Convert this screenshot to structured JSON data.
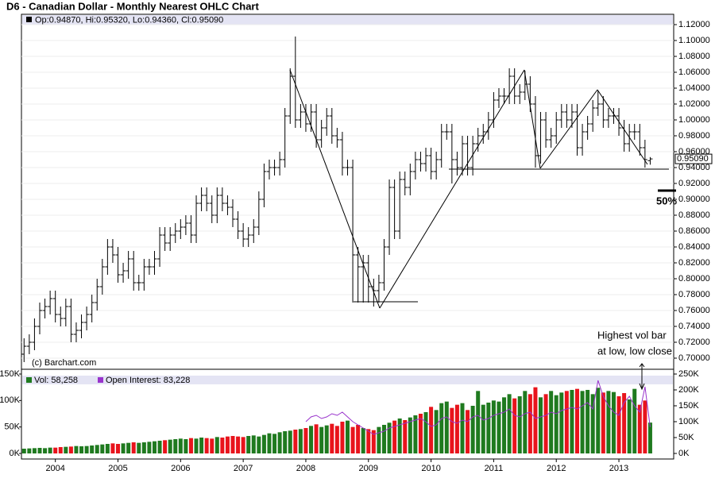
{
  "chart_data": [
    {
      "type": "ohlc",
      "title": "D6 - Canadian Dollar - Monthly Nearest OHLC Chart",
      "info": "Op:0.94870, Hi:0.95320, Lo:0.94360, Cl:0.95090",
      "copyright": "(c) Barchart.com",
      "annotations": [
        "Highest vol bar",
        "at low, low close",
        "50%"
      ],
      "last": {
        "value": 0.9509,
        "label": "0.95090"
      },
      "color": "#000000",
      "grid": true,
      "ylim": [
        0.686,
        1.133
      ],
      "yticks": [
        {
          "value": 0.7,
          "label": "0.70000"
        },
        {
          "value": 0.72,
          "label": "0.72000"
        },
        {
          "value": 0.74,
          "label": "0.74000"
        },
        {
          "value": 0.76,
          "label": "0.76000"
        },
        {
          "value": 0.78,
          "label": "0.78000"
        },
        {
          "value": 0.8,
          "label": "0.80000"
        },
        {
          "value": 0.82,
          "label": "0.82000"
        },
        {
          "value": 0.84,
          "label": "0.84000"
        },
        {
          "value": 0.86,
          "label": "0.86000"
        },
        {
          "value": 0.88,
          "label": "0.88000"
        },
        {
          "value": 0.9,
          "label": "0.90000"
        },
        {
          "value": 0.92,
          "label": "0.92000"
        },
        {
          "value": 0.94,
          "label": "0.94000"
        },
        {
          "value": 0.96,
          "label": "0.96000"
        },
        {
          "value": 0.98,
          "label": "0.98000"
        },
        {
          "value": 1.0,
          "label": "1.00000"
        },
        {
          "value": 1.02,
          "label": "1.02000"
        },
        {
          "value": 1.04,
          "label": "1.04000"
        },
        {
          "value": 1.06,
          "label": "1.06000"
        },
        {
          "value": 1.08,
          "label": "1.08000"
        },
        {
          "value": 1.1,
          "label": "1.10000"
        },
        {
          "value": 1.12,
          "label": "1.12000"
        }
      ],
      "open": [
        0.705,
        0.715,
        0.72,
        0.74,
        0.76,
        0.765,
        0.775,
        0.755,
        0.75,
        0.765,
        0.73,
        0.735,
        0.745,
        0.755,
        0.77,
        0.79,
        0.815,
        0.84,
        0.83,
        0.805,
        0.81,
        0.825,
        0.795,
        0.795,
        0.815,
        0.815,
        0.825,
        0.855,
        0.845,
        0.855,
        0.86,
        0.865,
        0.87,
        0.855,
        0.895,
        0.905,
        0.895,
        0.88,
        0.905,
        0.895,
        0.89,
        0.875,
        0.86,
        0.85,
        0.855,
        0.865,
        0.9,
        0.935,
        0.94,
        0.94,
        0.95,
        1.005,
        1.055,
        1.0,
        1.01,
        0.995,
        1.01,
        0.975,
        0.99,
        1.005,
        0.98,
        0.975,
        0.94,
        0.94,
        0.83,
        0.815,
        0.82,
        0.79,
        0.785,
        0.795,
        0.84,
        0.915,
        0.86,
        0.925,
        0.915,
        0.935,
        0.95,
        0.945,
        0.955,
        0.935,
        0.95,
        0.985,
        0.985,
        0.95,
        0.94,
        0.97,
        0.94,
        0.97,
        0.98,
        0.985,
        1.0,
        1.025,
        1.03,
        1.03,
        1.055,
        1.03,
        1.035,
        1.045,
        1.02,
        0.955,
        1.0,
        0.975,
        0.98,
        1.0,
        1.01,
        1.0,
        1.01,
        0.965,
        0.985,
        0.995,
        1.015,
        1.02,
        1.0,
        1.005,
        1.005,
        0.99,
        0.97,
        0.985,
        0.985,
        0.965,
        0.9487
      ],
      "high": [
        0.725,
        0.73,
        0.75,
        0.77,
        0.775,
        0.785,
        0.785,
        0.765,
        0.775,
        0.775,
        0.745,
        0.755,
        0.765,
        0.78,
        0.8,
        0.825,
        0.85,
        0.85,
        0.84,
        0.82,
        0.835,
        0.835,
        0.805,
        0.825,
        0.825,
        0.835,
        0.865,
        0.865,
        0.865,
        0.87,
        0.875,
        0.88,
        0.88,
        0.905,
        0.915,
        0.915,
        0.905,
        0.915,
        0.915,
        0.905,
        0.9,
        0.885,
        0.87,
        0.865,
        0.875,
        0.91,
        0.945,
        0.95,
        0.95,
        0.96,
        1.015,
        1.065,
        1.105,
        1.02,
        1.02,
        1.02,
        1.02,
        1.0,
        1.015,
        1.015,
        0.99,
        0.985,
        0.95,
        0.95,
        0.84,
        0.83,
        0.83,
        0.8,
        0.805,
        0.85,
        0.925,
        0.925,
        0.935,
        0.935,
        0.945,
        0.96,
        0.96,
        0.965,
        0.965,
        0.96,
        0.995,
        0.995,
        0.995,
        0.96,
        0.98,
        0.98,
        0.98,
        0.99,
        0.995,
        1.01,
        1.035,
        1.04,
        1.04,
        1.065,
        1.065,
        1.045,
        1.062,
        1.055,
        1.03,
        1.01,
        1.01,
        0.99,
        1.01,
        1.02,
        1.02,
        1.02,
        1.02,
        0.995,
        1.005,
        1.025,
        1.037,
        1.03,
        1.015,
        1.015,
        1.015,
        1.0,
        0.995,
        0.995,
        0.995,
        0.975,
        0.9532
      ],
      "low": [
        0.695,
        0.705,
        0.71,
        0.73,
        0.75,
        0.755,
        0.745,
        0.74,
        0.74,
        0.72,
        0.72,
        0.725,
        0.735,
        0.745,
        0.76,
        0.78,
        0.805,
        0.82,
        0.795,
        0.795,
        0.8,
        0.785,
        0.785,
        0.785,
        0.805,
        0.805,
        0.815,
        0.835,
        0.835,
        0.845,
        0.85,
        0.855,
        0.845,
        0.845,
        0.885,
        0.885,
        0.87,
        0.87,
        0.885,
        0.88,
        0.865,
        0.85,
        0.84,
        0.84,
        0.845,
        0.855,
        0.89,
        0.925,
        0.93,
        0.93,
        0.94,
        0.995,
        0.99,
        0.99,
        0.985,
        0.985,
        0.965,
        0.965,
        0.98,
        0.97,
        0.965,
        0.93,
        0.93,
        0.77,
        0.77,
        0.77,
        0.77,
        0.765,
        0.77,
        0.785,
        0.83,
        0.85,
        0.85,
        0.905,
        0.905,
        0.925,
        0.935,
        0.935,
        0.925,
        0.925,
        0.94,
        0.975,
        0.92,
        0.93,
        0.93,
        0.93,
        0.93,
        0.96,
        0.97,
        0.975,
        0.99,
        1.015,
        1.02,
        1.02,
        1.02,
        1.02,
        1.025,
        1.01,
        0.94,
        0.945,
        0.965,
        0.965,
        0.97,
        0.99,
        0.99,
        0.99,
        0.955,
        0.955,
        0.975,
        0.985,
        1.005,
        0.99,
        0.99,
        0.995,
        0.98,
        0.96,
        0.96,
        0.975,
        0.955,
        0.94,
        0.9436
      ],
      "close": [
        0.715,
        0.72,
        0.74,
        0.76,
        0.765,
        0.775,
        0.755,
        0.75,
        0.765,
        0.73,
        0.735,
        0.745,
        0.755,
        0.77,
        0.79,
        0.815,
        0.84,
        0.83,
        0.805,
        0.81,
        0.825,
        0.795,
        0.795,
        0.815,
        0.815,
        0.825,
        0.855,
        0.845,
        0.855,
        0.86,
        0.865,
        0.87,
        0.855,
        0.895,
        0.905,
        0.895,
        0.88,
        0.905,
        0.895,
        0.89,
        0.875,
        0.86,
        0.85,
        0.855,
        0.865,
        0.9,
        0.935,
        0.94,
        0.94,
        0.95,
        1.005,
        1.055,
        1.0,
        1.01,
        0.995,
        1.01,
        0.975,
        0.99,
        1.005,
        0.98,
        0.975,
        0.94,
        0.94,
        0.83,
        0.815,
        0.82,
        0.79,
        0.785,
        0.795,
        0.84,
        0.915,
        0.86,
        0.925,
        0.915,
        0.935,
        0.95,
        0.945,
        0.955,
        0.935,
        0.95,
        0.985,
        0.985,
        0.95,
        0.94,
        0.97,
        0.94,
        0.97,
        0.98,
        0.985,
        1.0,
        1.025,
        1.03,
        1.03,
        1.055,
        1.03,
        1.035,
        1.045,
        1.02,
        0.955,
        1.0,
        0.975,
        0.98,
        1.0,
        1.01,
        1.0,
        1.01,
        0.965,
        0.985,
        0.995,
        1.015,
        1.02,
        1.0,
        1.005,
        1.005,
        0.99,
        0.97,
        0.985,
        0.985,
        0.965,
        0.95,
        0.9509
      ]
    },
    {
      "type": "bar",
      "categories": [
        null,
        null,
        null,
        null,
        null,
        null,
        "2004",
        null,
        null,
        null,
        null,
        null,
        null,
        null,
        null,
        null,
        null,
        null,
        "2005",
        null,
        null,
        null,
        null,
        null,
        null,
        null,
        null,
        null,
        null,
        null,
        "2006",
        null,
        null,
        null,
        null,
        null,
        null,
        null,
        null,
        null,
        null,
        null,
        "2007",
        null,
        null,
        null,
        null,
        null,
        null,
        null,
        null,
        null,
        null,
        null,
        "2008",
        null,
        null,
        null,
        null,
        null,
        null,
        null,
        null,
        null,
        null,
        null,
        "2009",
        null,
        null,
        null,
        null,
        null,
        null,
        null,
        null,
        null,
        null,
        null,
        "2010",
        null,
        null,
        null,
        null,
        null,
        null,
        null,
        null,
        null,
        null,
        null,
        "2011",
        null,
        null,
        null,
        null,
        null,
        null,
        null,
        null,
        null,
        null,
        null,
        "2012",
        null,
        null,
        null,
        null,
        null,
        null,
        null,
        null,
        null,
        null,
        null,
        "2013",
        null,
        null,
        null,
        null,
        null,
        null
      ],
      "ylim": [
        -10500,
        159000
      ],
      "yticks": [
        {
          "value": 0,
          "label": "0K"
        },
        {
          "value": 50000,
          "label": "50K"
        },
        {
          "value": 100000,
          "label": "100K"
        },
        {
          "value": 150000,
          "label": "150K"
        }
      ],
      "y2lim": [
        -17500,
        265000
      ],
      "y2ticks": [
        {
          "value": 0,
          "label": "0K"
        },
        {
          "value": 50000,
          "label": "50K"
        },
        {
          "value": 100000,
          "label": "100K"
        },
        {
          "value": 150000,
          "label": "150K"
        },
        {
          "value": 200000,
          "label": "200K"
        },
        {
          "value": 250000,
          "label": "250K"
        }
      ],
      "series": [
        {
          "name": "Vol: 58,258",
          "color": "#1f7a1f",
          "down_color": "#e8141c",
          "values": [
            9000,
            9500,
            10000,
            10500,
            10000,
            11000,
            11000,
            12000,
            12500,
            13000,
            14000,
            13500,
            14000,
            15000,
            16000,
            17000,
            18000,
            19000,
            18000,
            19000,
            20000,
            21000,
            20000,
            21000,
            22000,
            23000,
            24000,
            25000,
            26000,
            27000,
            28000,
            27000,
            29000,
            28000,
            30000,
            29000,
            28000,
            31000,
            30000,
            32000,
            33000,
            32000,
            31000,
            33000,
            34000,
            32000,
            35000,
            38000,
            37000,
            40000,
            42000,
            43000,
            45000,
            46000,
            48000,
            52000,
            55000,
            50000,
            53000,
            56000,
            52000,
            60000,
            62000,
            50000,
            54000,
            48000,
            46000,
            44000,
            50000,
            54000,
            58000,
            62000,
            66000,
            63000,
            68000,
            72000,
            75000,
            78000,
            88000,
            82000,
            95000,
            98000,
            86000,
            92000,
            95000,
            82000,
            90000,
            118000,
            92000,
            96000,
            100000,
            98000,
            106000,
            112000,
            104000,
            108000,
            118000,
            112000,
            125000,
            106000,
            112000,
            118000,
            110000,
            115000,
            118000,
            120000,
            122000,
            118000,
            120000,
            112000,
            124000,
            115000,
            118000,
            116000,
            108000,
            114000,
            102000,
            122000,
            92000,
            100000,
            58258
          ]
        },
        {
          "name": "Open Interest: 83,228",
          "color": "#9933cc",
          "axis": "y2",
          "values": [
            null,
            null,
            null,
            null,
            null,
            null,
            null,
            null,
            null,
            null,
            null,
            null,
            null,
            null,
            null,
            null,
            null,
            null,
            null,
            null,
            null,
            null,
            null,
            null,
            null,
            null,
            null,
            null,
            null,
            null,
            null,
            null,
            null,
            null,
            null,
            null,
            null,
            null,
            null,
            null,
            null,
            null,
            null,
            null,
            null,
            null,
            null,
            null,
            null,
            null,
            null,
            null,
            null,
            null,
            100000,
            115000,
            120000,
            110000,
            115000,
            125000,
            120000,
            130000,
            115000,
            100000,
            90000,
            80000,
            70000,
            60000,
            65000,
            70000,
            80000,
            85000,
            90000,
            95000,
            100000,
            105000,
            110000,
            100000,
            85000,
            90000,
            110000,
            115000,
            100000,
            95000,
            105000,
            100000,
            115000,
            120000,
            105000,
            110000,
            120000,
            125000,
            130000,
            140000,
            120000,
            115000,
            125000,
            130000,
            110000,
            115000,
            120000,
            130000,
            125000,
            135000,
            140000,
            145000,
            140000,
            150000,
            160000,
            140000,
            230000,
            180000,
            150000,
            130000,
            120000,
            160000,
            180000,
            150000,
            130000,
            210000,
            83228
          ]
        }
      ]
    }
  ]
}
